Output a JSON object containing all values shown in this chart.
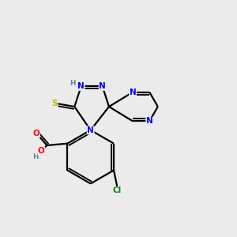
{
  "bg_color": "#ebebeb",
  "bond_color": "#000000",
  "atom_colors": {
    "N": "#0000ff",
    "O": "#ff0000",
    "S": "#bbbb00",
    "Cl": "#008800",
    "C": "#000000",
    "H": "#708090",
    "OH": "#ff0000"
  },
  "lw": 1.6,
  "lw2": 1.2,
  "fs": 7.5
}
